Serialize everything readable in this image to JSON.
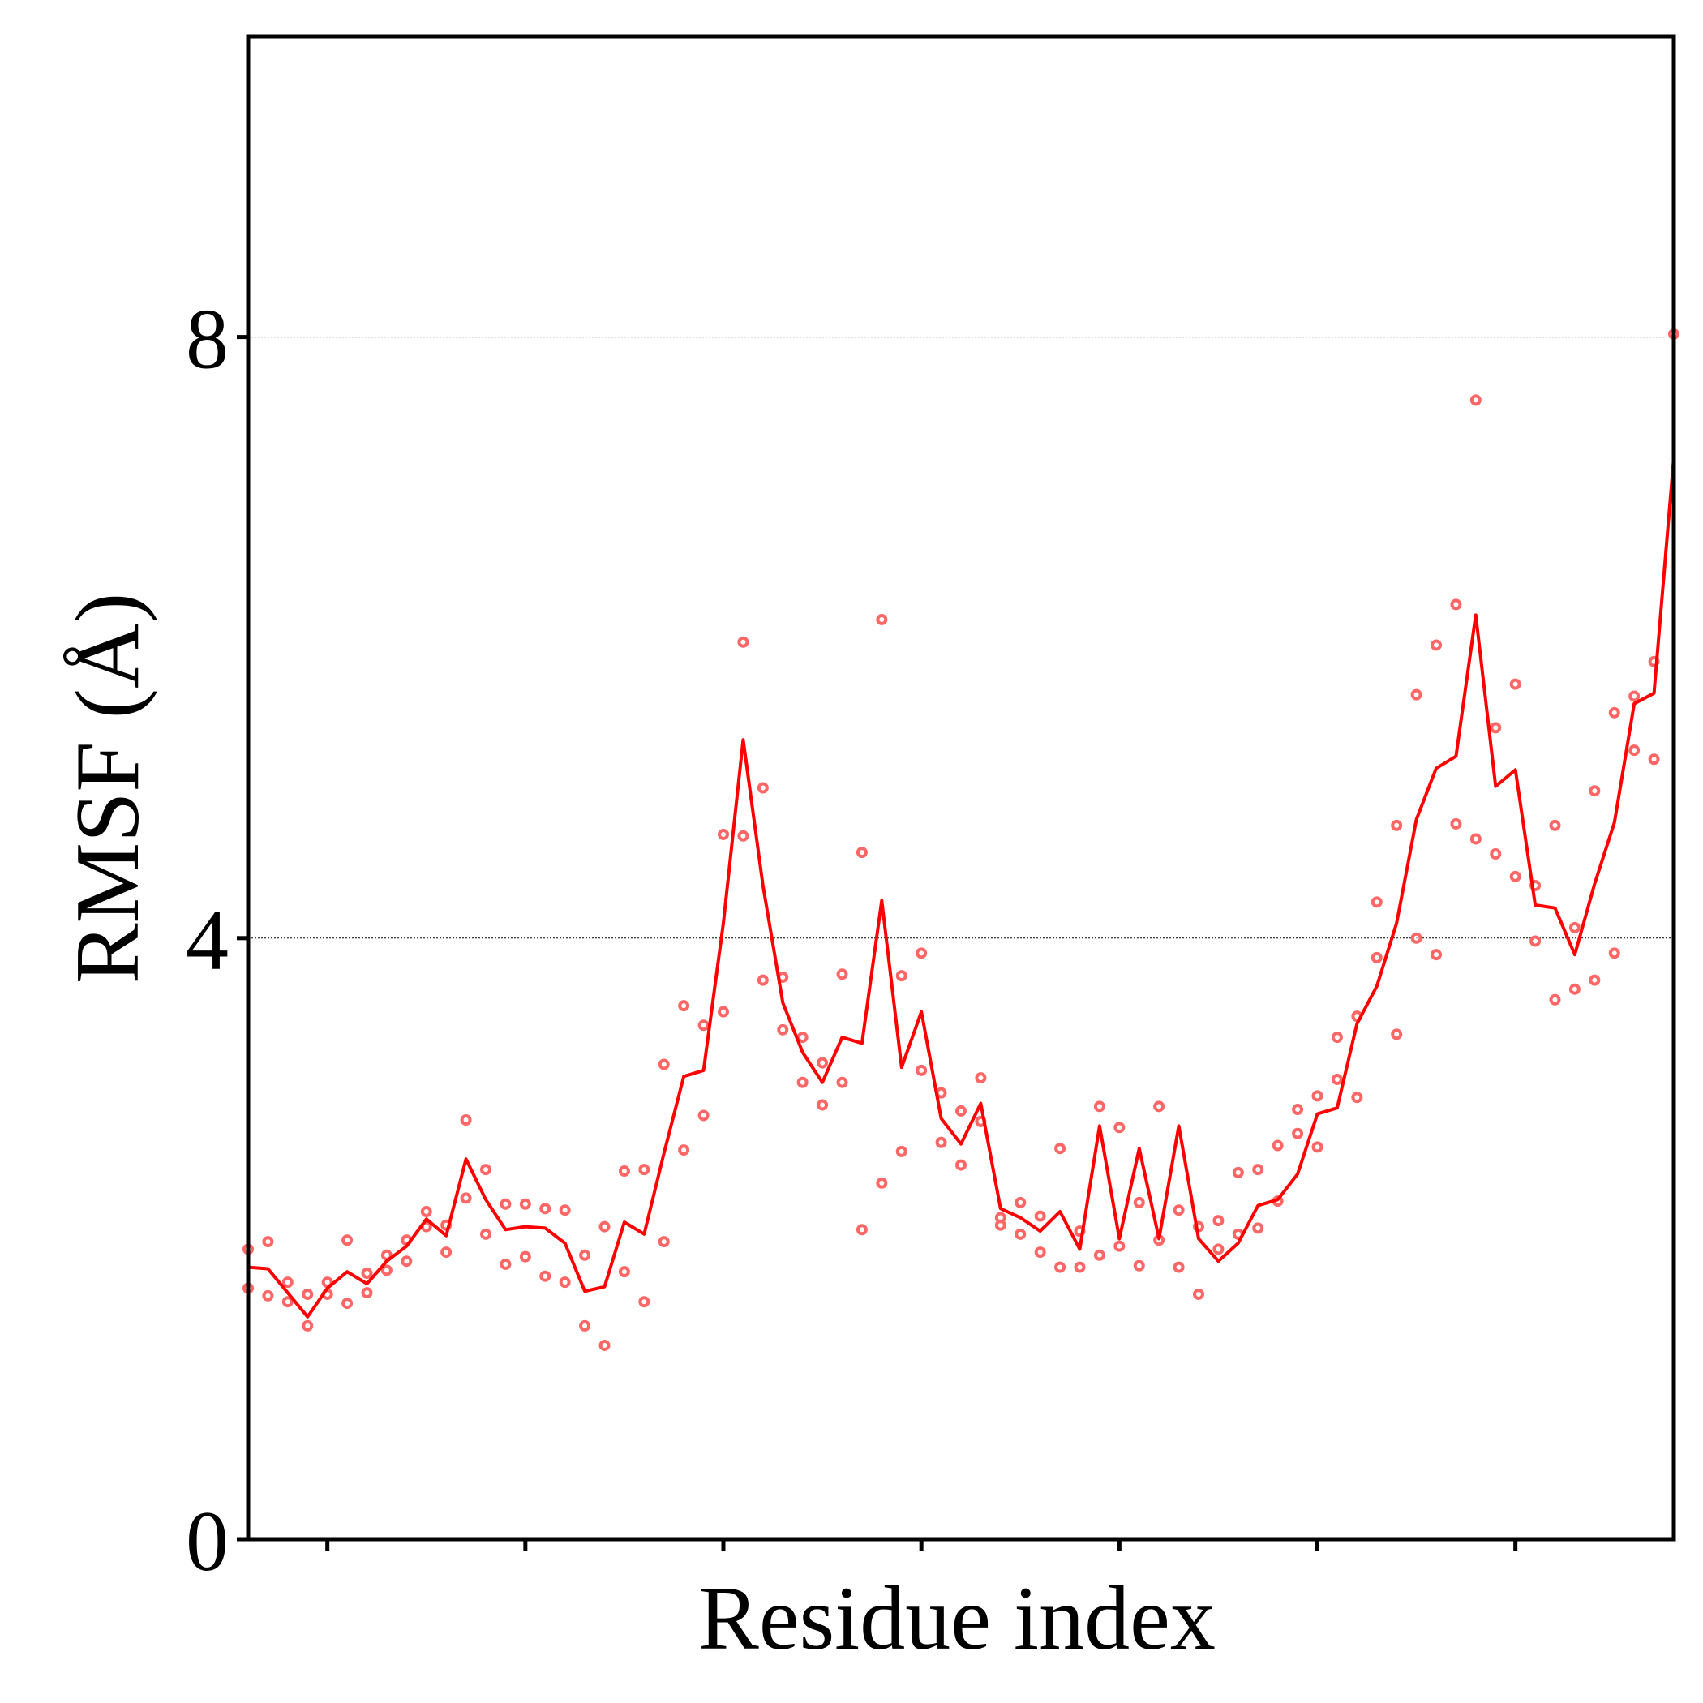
{
  "chart_data": {
    "type": "line",
    "xlabel": "Residue index",
    "ylabel": "RMSF (Å)",
    "ylim": [
      0,
      10
    ],
    "xlim": [
      0,
      72
    ],
    "y_ticks": [
      {
        "value": 0,
        "label": "0"
      },
      {
        "value": 4,
        "label": "4"
      },
      {
        "value": 8,
        "label": "8"
      }
    ],
    "x_ticks": [
      4,
      14,
      24,
      34,
      44,
      54,
      64
    ],
    "x_tick_labels_visible": false,
    "grid": "horizontal dotted at y ticks",
    "line_color": "#ff0000",
    "marker_color": "#ff6666",
    "series": [
      {
        "style": "line",
        "x": [
          0,
          1,
          2,
          3,
          4,
          5,
          6,
          7,
          8,
          9,
          10,
          11,
          12,
          13,
          14,
          15,
          16,
          17,
          18,
          19,
          20,
          21,
          22,
          23,
          24,
          25,
          26,
          27,
          28,
          29,
          30,
          31,
          32,
          33,
          34,
          35,
          36,
          37,
          38,
          39,
          40,
          41,
          42,
          43,
          44,
          45,
          46,
          47,
          48,
          49,
          50,
          51,
          52,
          53,
          54,
          55,
          56,
          57,
          58,
          59,
          60,
          61,
          62,
          63,
          64,
          65,
          66,
          67,
          68,
          69,
          70,
          71,
          72
        ],
        "values": [
          1.81,
          1.8,
          1.64,
          1.48,
          1.67,
          1.78,
          1.7,
          1.85,
          1.95,
          2.13,
          2.02,
          2.53,
          2.26,
          2.06,
          2.08,
          2.07,
          1.97,
          1.65,
          1.68,
          2.11,
          2.03,
          2.57,
          3.08,
          3.12,
          4.1,
          5.32,
          4.35,
          3.57,
          3.24,
          3.04,
          3.34,
          3.3,
          4.25,
          3.14,
          3.51,
          2.8,
          2.63,
          2.9,
          2.2,
          2.14,
          2.05,
          2.18,
          1.93,
          2.75,
          2.0,
          2.6,
          2.0,
          2.75,
          2.0,
          1.85,
          1.97,
          2.22,
          2.26,
          2.43,
          2.83,
          2.87,
          3.43,
          3.68,
          4.1,
          4.79,
          5.13,
          5.21,
          6.15,
          5.01,
          5.12,
          4.22,
          4.2,
          3.89,
          4.36,
          4.77,
          5.56,
          5.63,
          7.2
        ]
      },
      {
        "style": "scatter",
        "x": [
          0,
          0,
          1,
          1,
          2,
          2,
          3,
          3,
          4,
          4,
          5,
          5,
          6,
          6,
          7,
          7,
          8,
          8,
          9,
          9,
          10,
          10,
          11,
          11,
          12,
          12,
          13,
          13,
          14,
          14,
          15,
          15,
          16,
          16,
          17,
          17,
          18,
          18,
          19,
          19,
          20,
          20,
          21,
          21,
          22,
          22,
          23,
          23,
          24,
          24,
          25,
          25,
          26,
          26,
          27,
          27,
          28,
          28,
          29,
          29,
          30,
          30,
          31,
          31,
          32,
          32,
          33,
          33,
          34,
          34,
          35,
          35,
          36,
          36,
          37,
          37,
          38,
          38,
          39,
          39,
          40,
          40,
          41,
          41,
          42,
          42,
          43,
          43,
          44,
          44,
          45,
          45,
          46,
          46,
          47,
          47,
          48,
          48,
          49,
          49,
          50,
          50,
          51,
          51,
          52,
          52,
          53,
          53,
          54,
          54,
          55,
          55,
          56,
          56,
          57,
          57,
          58,
          58,
          59,
          59,
          60,
          60,
          61,
          61,
          62,
          62,
          63,
          63,
          64,
          64,
          65,
          65,
          66,
          66,
          67,
          67,
          68,
          68,
          69,
          69,
          70,
          70,
          71,
          71,
          72
        ],
        "values": [
          1.67,
          1.93,
          1.62,
          1.98,
          1.58,
          1.71,
          1.42,
          1.63,
          1.63,
          1.71,
          1.57,
          1.99,
          1.64,
          1.77,
          1.79,
          1.89,
          1.85,
          1.99,
          2.08,
          2.18,
          1.91,
          2.09,
          2.79,
          2.27,
          2.46,
          2.03,
          2.23,
          1.83,
          1.88,
          2.23,
          1.75,
          2.2,
          1.71,
          2.19,
          1.42,
          1.89,
          1.29,
          2.08,
          1.78,
          2.45,
          1.58,
          2.46,
          1.98,
          3.16,
          2.59,
          3.55,
          2.82,
          3.42,
          4.69,
          3.51,
          5.97,
          4.68,
          5.0,
          3.72,
          3.39,
          3.74,
          3.04,
          3.34,
          2.89,
          3.17,
          3.76,
          3.04,
          2.06,
          4.57,
          2.37,
          6.12,
          2.58,
          3.75,
          3.9,
          3.12,
          2.97,
          2.64,
          2.49,
          2.85,
          3.07,
          2.78,
          2.09,
          2.14,
          2.03,
          2.24,
          1.91,
          2.15,
          1.81,
          2.6,
          1.81,
          2.05,
          1.89,
          2.88,
          1.95,
          2.74,
          1.82,
          2.24,
          1.99,
          2.88,
          1.81,
          2.19,
          1.63,
          2.08,
          2.12,
          1.93,
          2.44,
          2.03,
          2.46,
          2.07,
          2.62,
          2.25,
          2.7,
          2.86,
          2.61,
          2.95,
          3.34,
          3.06,
          3.48,
          2.94,
          3.87,
          4.24,
          3.36,
          4.75,
          4.0,
          5.62,
          5.95,
          3.89,
          6.22,
          4.76,
          4.66,
          7.58,
          5.4,
          4.56,
          4.41,
          5.69,
          3.98,
          4.35,
          3.59,
          4.75,
          3.66,
          4.07,
          3.72,
          4.98,
          3.9,
          5.5,
          5.25,
          5.61,
          5.19,
          5.84,
          8.02
        ]
      }
    ]
  }
}
